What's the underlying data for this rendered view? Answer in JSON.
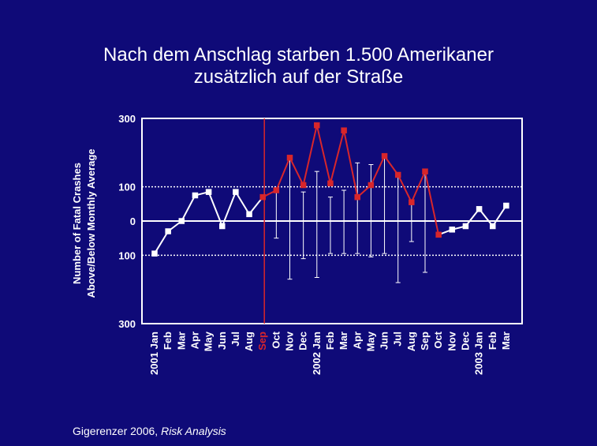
{
  "slide": {
    "title_line1": "Nach dem Anschlag starben 1.500 Amerikaner",
    "title_line2": "zusätzlich auf der Straße",
    "caption_author": "Gigerenzer 2006, ",
    "caption_source": "Risk Analysis"
  },
  "colors": {
    "background": "#0f0a78",
    "axis": "#ffffff",
    "baseline_series": "#ffffff",
    "post_event_series": "#d8262b",
    "event_marker": "#d8262b"
  },
  "chart_data": {
    "type": "line",
    "title": "Nach dem Anschlag starben 1.500 Amerikaner zusätzlich auf der Straße",
    "ylabel_line1": "Number of Fatal Crashes",
    "ylabel_line2": "Above/Below Monthly  Average",
    "xlabel": "",
    "ylim": [
      -300,
      300
    ],
    "y_ticks": [
      {
        "value": 300,
        "label": "300"
      },
      {
        "value": 100,
        "label": "100"
      },
      {
        "value": 0,
        "label": "0"
      },
      {
        "value": -100,
        "label": "100"
      },
      {
        "value": -300,
        "label": "300"
      }
    ],
    "reference_lines": [
      100,
      -100
    ],
    "x_labels": [
      "2001 Jan",
      "Feb",
      "Mar",
      "Apr",
      "May",
      "Jun",
      "Jul",
      "Aug",
      "Sep",
      "Oct",
      "Nov",
      "Dec",
      "2002 Jan",
      "Feb",
      "Mar",
      "Apr",
      "May",
      "Jun",
      "Jul",
      "Aug",
      "Sep",
      "Oct",
      "Nov",
      "Dec",
      "2003 Jan",
      "Feb",
      "Mar"
    ],
    "event_index": 8,
    "values": [
      -95,
      -30,
      0,
      75,
      85,
      -15,
      85,
      20,
      70,
      90,
      185,
      105,
      280,
      110,
      265,
      70,
      105,
      190,
      135,
      55,
      145,
      -40,
      -25,
      -15,
      35,
      -15,
      45
    ],
    "error_bars": [
      {
        "index": 9,
        "low": -50,
        "high": 90
      },
      {
        "index": 10,
        "low": -170,
        "high": 185
      },
      {
        "index": 11,
        "low": -110,
        "high": 85
      },
      {
        "index": 12,
        "low": -165,
        "high": 145
      },
      {
        "index": 13,
        "low": -95,
        "high": 70
      },
      {
        "index": 14,
        "low": -95,
        "high": 90
      },
      {
        "index": 15,
        "low": -95,
        "high": 170
      },
      {
        "index": 16,
        "low": -105,
        "high": 165
      },
      {
        "index": 17,
        "low": -95,
        "high": 190
      },
      {
        "index": 18,
        "low": -180,
        "high": 135
      },
      {
        "index": 19,
        "low": -60,
        "high": 55
      },
      {
        "index": 20,
        "low": -150,
        "high": 145
      }
    ]
  }
}
